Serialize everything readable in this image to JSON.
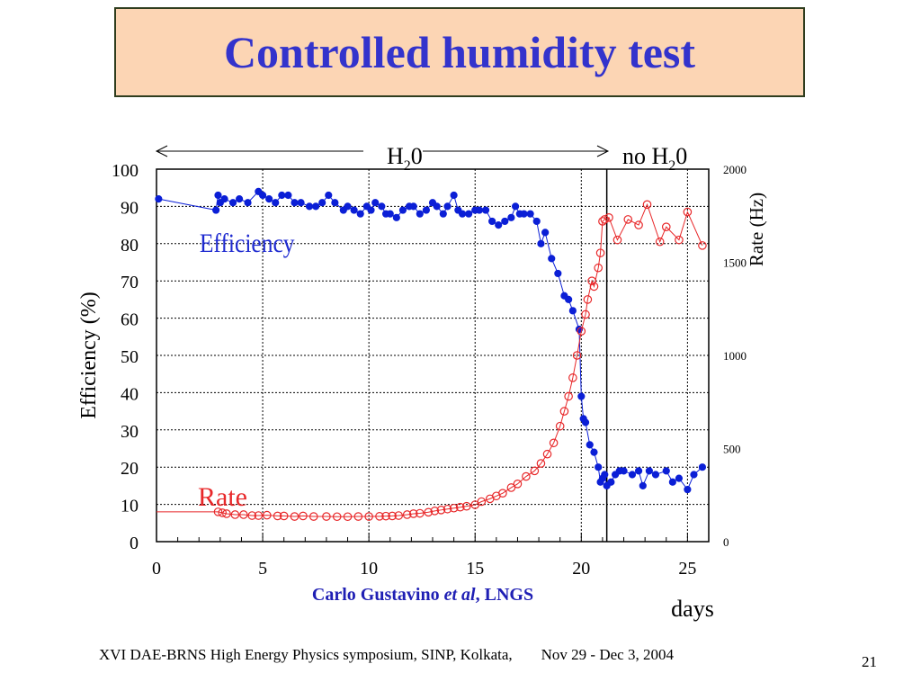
{
  "slide": {
    "title": "Controlled humidity test",
    "credit_name": "Carlo Gustavino",
    "credit_etal": "et al",
    "credit_sep": ", ",
    "credit_inst": "LNGS",
    "footer_left": "XVI DAE-BRNS High Energy Physics symposium, SINP, Kolkata,",
    "footer_right": "Nov 29 - Dec 3, 2004",
    "slide_number": "21"
  },
  "colors": {
    "title_bg": "#fcd5b4",
    "title_text": "#3333cc",
    "efficiency": "#0b1fd6",
    "rate": "#e8282a",
    "credit": "#1f1fb4"
  },
  "chart_data": {
    "type": "scatter",
    "xlabel": "days",
    "ylabel_left": "Efficiency (%)",
    "ylabel_right": "Rate (Hz)",
    "xlim": [
      0,
      26
    ],
    "ylim_left": [
      0,
      100
    ],
    "ylim_right": [
      0,
      2000
    ],
    "x_ticks": [
      0,
      5,
      10,
      15,
      20,
      25
    ],
    "y_ticks_left": [
      0,
      10,
      20,
      30,
      40,
      50,
      60,
      70,
      80,
      90,
      100
    ],
    "y_ticks_right": [
      0,
      500,
      1000,
      1500,
      2000
    ],
    "grid": true,
    "annotations": {
      "phase_h2o": "H",
      "phase_h2o_sub": "2",
      "phase_h2o_end": "0",
      "phase_no_h2o": "no H",
      "phase_no_h2o_sub": "2",
      "phase_no_h2o_end": "0",
      "transition_day": 21.2,
      "series_label_efficiency": "Efficiency",
      "series_label_rate": "Rate"
    },
    "series": [
      {
        "name": "Efficiency",
        "axis": "left",
        "marker": "filled-circle",
        "points": [
          [
            0.1,
            92
          ],
          [
            2.8,
            89
          ],
          [
            2.9,
            93
          ],
          [
            3.0,
            91
          ],
          [
            3.2,
            92
          ],
          [
            3.6,
            91
          ],
          [
            3.9,
            92
          ],
          [
            4.3,
            91
          ],
          [
            4.8,
            94
          ],
          [
            5.0,
            93
          ],
          [
            5.3,
            92
          ],
          [
            5.6,
            91
          ],
          [
            5.9,
            93
          ],
          [
            6.2,
            93
          ],
          [
            6.5,
            91
          ],
          [
            6.8,
            91
          ],
          [
            7.2,
            90
          ],
          [
            7.5,
            90
          ],
          [
            7.8,
            91
          ],
          [
            8.1,
            93
          ],
          [
            8.4,
            91
          ],
          [
            8.8,
            89
          ],
          [
            9.0,
            90
          ],
          [
            9.3,
            89
          ],
          [
            9.6,
            88
          ],
          [
            9.9,
            90
          ],
          [
            10.1,
            89
          ],
          [
            10.3,
            91
          ],
          [
            10.6,
            90
          ],
          [
            10.8,
            88
          ],
          [
            11.0,
            88
          ],
          [
            11.3,
            87
          ],
          [
            11.6,
            89
          ],
          [
            11.9,
            90
          ],
          [
            12.1,
            90
          ],
          [
            12.4,
            88
          ],
          [
            12.7,
            89
          ],
          [
            13.0,
            91
          ],
          [
            13.2,
            90
          ],
          [
            13.5,
            88
          ],
          [
            13.7,
            90
          ],
          [
            14.0,
            93
          ],
          [
            14.2,
            89
          ],
          [
            14.4,
            88
          ],
          [
            14.7,
            88
          ],
          [
            15.0,
            89
          ],
          [
            15.2,
            89
          ],
          [
            15.5,
            89
          ],
          [
            15.8,
            86
          ],
          [
            16.1,
            85
          ],
          [
            16.4,
            86
          ],
          [
            16.7,
            87
          ],
          [
            16.9,
            90
          ],
          [
            17.1,
            88
          ],
          [
            17.3,
            88
          ],
          [
            17.6,
            88
          ],
          [
            17.9,
            86
          ],
          [
            18.1,
            80
          ],
          [
            18.3,
            83
          ],
          [
            18.6,
            76
          ],
          [
            18.9,
            72
          ],
          [
            19.2,
            66
          ],
          [
            19.4,
            65
          ],
          [
            19.6,
            62
          ],
          [
            19.9,
            57
          ],
          [
            20.0,
            39
          ],
          [
            20.1,
            33
          ],
          [
            20.2,
            32
          ],
          [
            20.4,
            26
          ],
          [
            20.6,
            24
          ],
          [
            20.8,
            20
          ],
          [
            20.9,
            16
          ],
          [
            21.0,
            17
          ],
          [
            21.1,
            18
          ],
          [
            21.2,
            15
          ],
          [
            21.4,
            16
          ],
          [
            21.6,
            18
          ],
          [
            21.8,
            19
          ],
          [
            22.0,
            19
          ],
          [
            22.4,
            18
          ],
          [
            22.7,
            19
          ],
          [
            22.9,
            15
          ],
          [
            23.2,
            19
          ],
          [
            23.5,
            18
          ],
          [
            24.0,
            19
          ],
          [
            24.3,
            16
          ],
          [
            24.6,
            17
          ],
          [
            25.0,
            14
          ],
          [
            25.3,
            18
          ],
          [
            25.7,
            20
          ]
        ]
      },
      {
        "name": "Rate",
        "axis": "right",
        "marker": "open-circle",
        "points": [
          [
            2.9,
            160
          ],
          [
            3.1,
            155
          ],
          [
            3.3,
            150
          ],
          [
            3.7,
            145
          ],
          [
            4.1,
            145
          ],
          [
            4.5,
            140
          ],
          [
            4.8,
            140
          ],
          [
            5.2,
            142
          ],
          [
            5.7,
            138
          ],
          [
            6.0,
            138
          ],
          [
            6.5,
            135
          ],
          [
            6.9,
            138
          ],
          [
            7.4,
            135
          ],
          [
            8.0,
            135
          ],
          [
            8.5,
            134
          ],
          [
            9.0,
            134
          ],
          [
            9.5,
            135
          ],
          [
            10.0,
            135
          ],
          [
            10.5,
            136
          ],
          [
            10.8,
            137
          ],
          [
            11.1,
            138
          ],
          [
            11.4,
            140
          ],
          [
            11.8,
            145
          ],
          [
            12.1,
            150
          ],
          [
            12.4,
            152
          ],
          [
            12.8,
            158
          ],
          [
            13.1,
            165
          ],
          [
            13.4,
            170
          ],
          [
            13.7,
            175
          ],
          [
            14.0,
            180
          ],
          [
            14.3,
            185
          ],
          [
            14.6,
            190
          ],
          [
            15.0,
            198
          ],
          [
            15.3,
            215
          ],
          [
            15.7,
            230
          ],
          [
            16.0,
            245
          ],
          [
            16.3,
            260
          ],
          [
            16.7,
            290
          ],
          [
            17.0,
            310
          ],
          [
            17.4,
            350
          ],
          [
            17.8,
            380
          ],
          [
            18.1,
            420
          ],
          [
            18.4,
            470
          ],
          [
            18.7,
            530
          ],
          [
            19.0,
            620
          ],
          [
            19.2,
            700
          ],
          [
            19.4,
            780
          ],
          [
            19.6,
            880
          ],
          [
            19.8,
            1000
          ],
          [
            20.0,
            1130
          ],
          [
            20.2,
            1220
          ],
          [
            20.3,
            1300
          ],
          [
            20.5,
            1400
          ],
          [
            20.6,
            1370
          ],
          [
            20.8,
            1470
          ],
          [
            20.9,
            1550
          ],
          [
            21.0,
            1720
          ],
          [
            21.1,
            1730
          ],
          [
            21.3,
            1740
          ],
          [
            21.7,
            1620
          ],
          [
            22.2,
            1730
          ],
          [
            22.7,
            1700
          ],
          [
            23.1,
            1810
          ],
          [
            23.7,
            1610
          ],
          [
            24.0,
            1690
          ],
          [
            24.6,
            1620
          ],
          [
            25.0,
            1770
          ],
          [
            25.7,
            1590
          ]
        ]
      }
    ]
  }
}
